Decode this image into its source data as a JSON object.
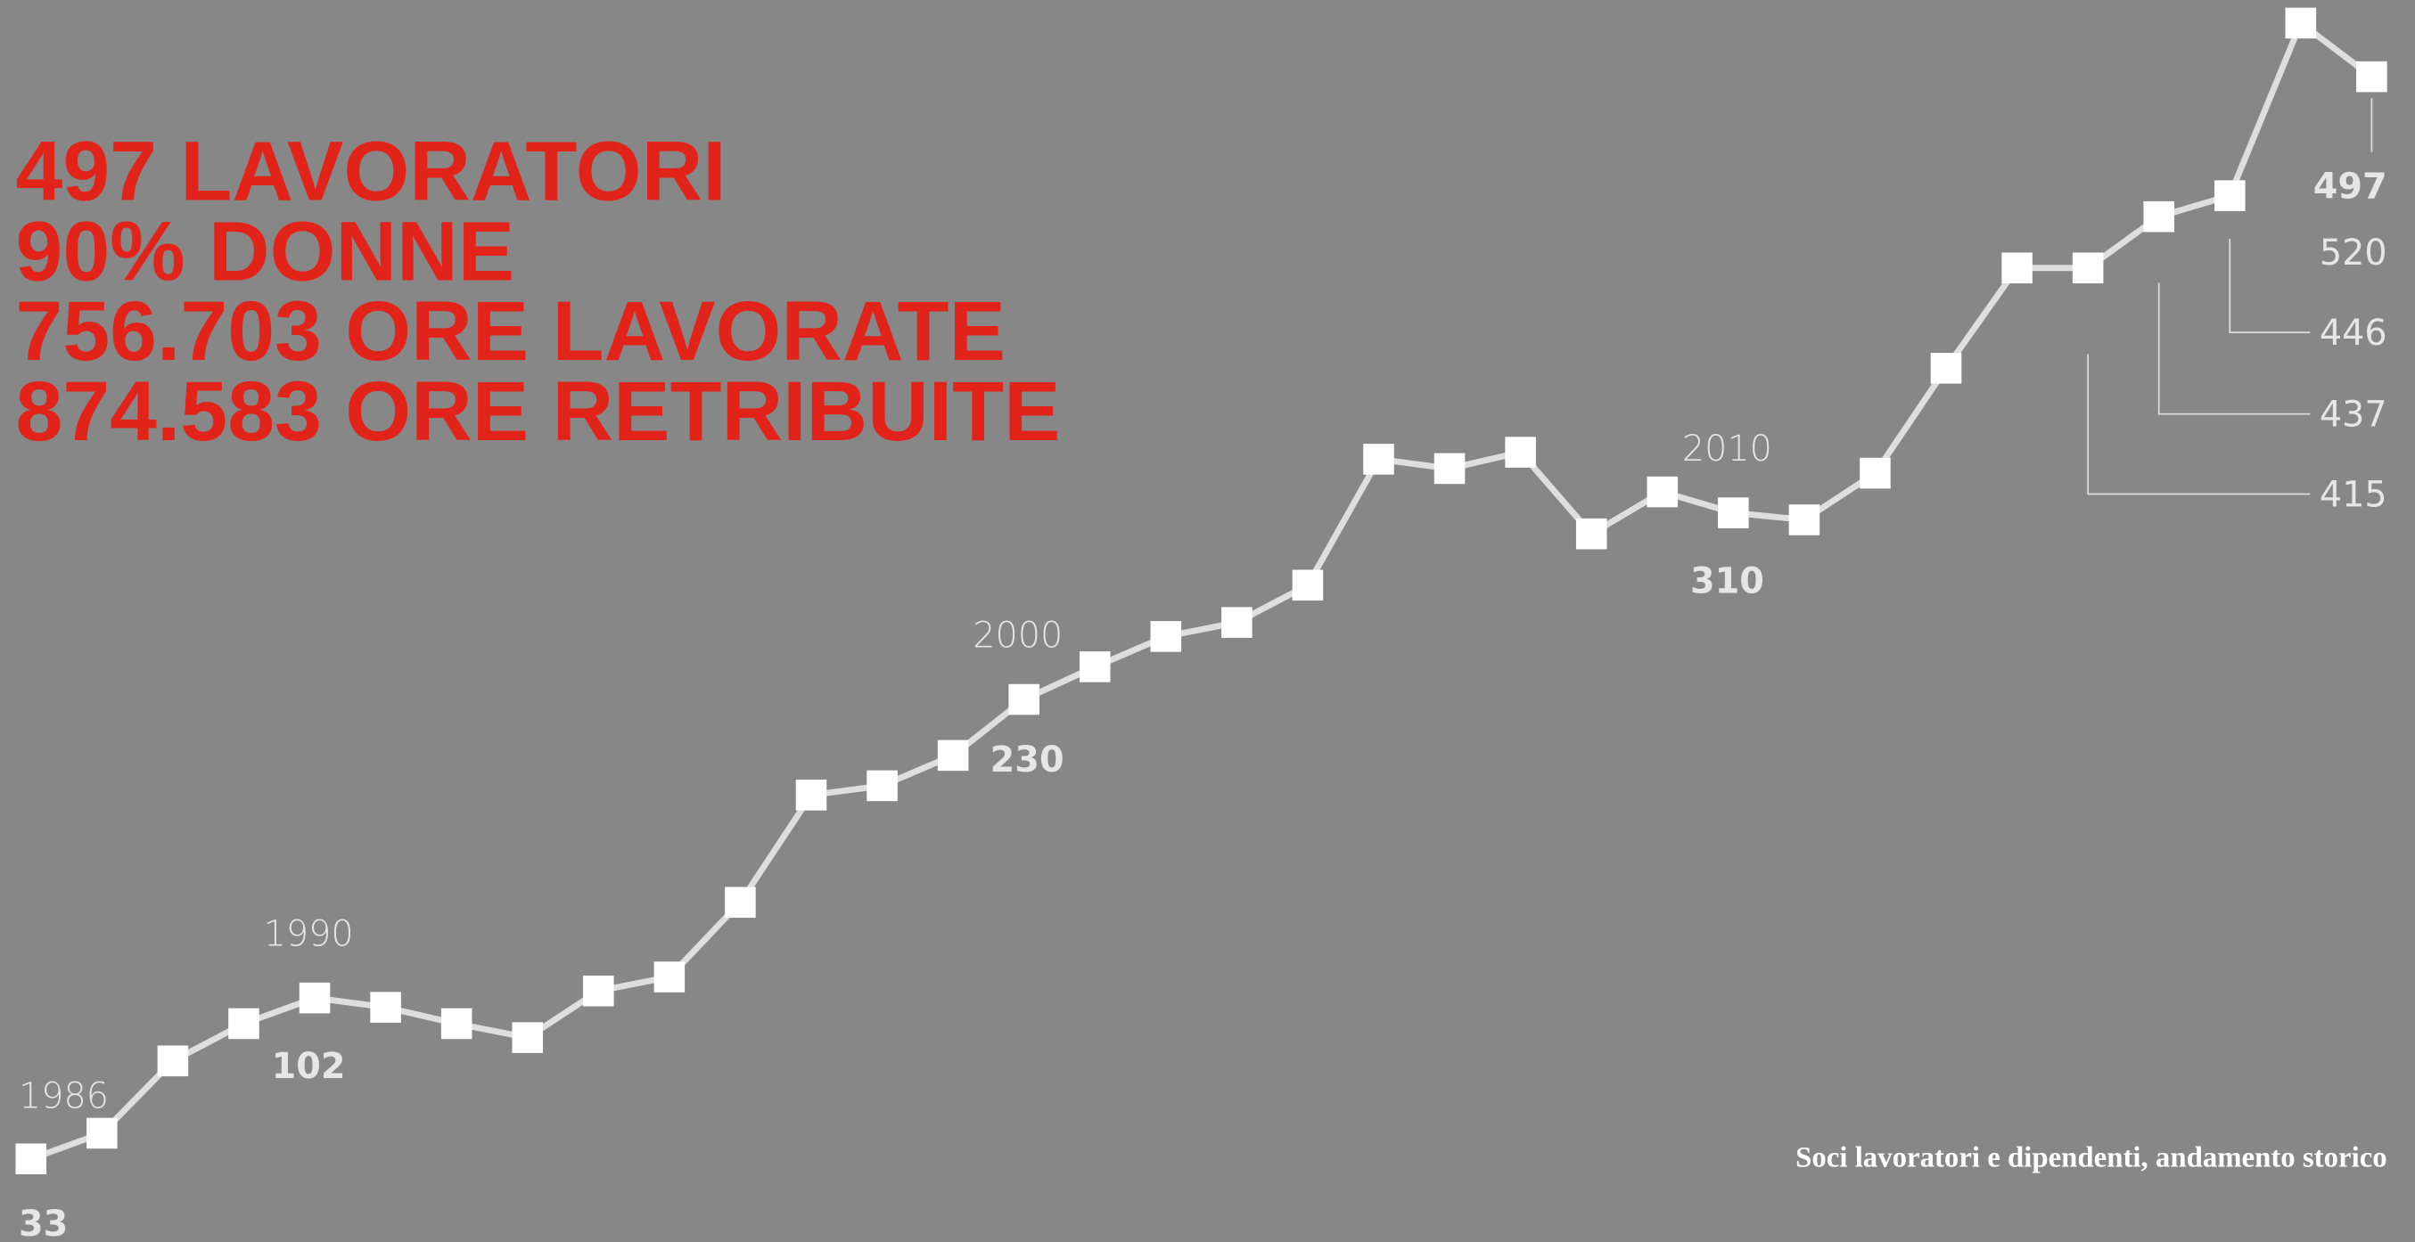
{
  "chart_data": {
    "type": "line",
    "headline": [
      "497 LAVORATORI",
      "90% DONNE",
      "756.703 ORE LAVORATE",
      "874.583 ORE RETRIBUITE"
    ],
    "caption": "Soci lavoratori e dipendenti, andamento storico",
    "categories": [
      "1986",
      null,
      null,
      null,
      "1990",
      null,
      null,
      null,
      null,
      null,
      null,
      null,
      null,
      null,
      "2000",
      null,
      null,
      null,
      null,
      null,
      null,
      null,
      null,
      null,
      "2010",
      null,
      null,
      null,
      null,
      null,
      null,
      null,
      null,
      null
    ],
    "values": [
      33,
      44,
      75,
      91,
      102,
      98,
      91,
      85,
      105,
      111,
      143,
      189,
      193,
      206,
      230,
      244,
      257,
      263,
      279,
      333,
      329,
      336,
      301,
      319,
      310,
      307,
      327,
      372,
      415,
      415,
      437,
      446,
      520,
      497
    ],
    "value_labels": [
      "33",
      null,
      null,
      null,
      "102",
      null,
      null,
      null,
      null,
      null,
      null,
      null,
      null,
      null,
      "230",
      null,
      null,
      null,
      null,
      null,
      null,
      null,
      null,
      null,
      "310",
      null,
      null,
      null,
      null,
      "415",
      "437",
      "446",
      "520",
      "497"
    ],
    "color": "#dedede",
    "marker_color": "#ffffff"
  }
}
